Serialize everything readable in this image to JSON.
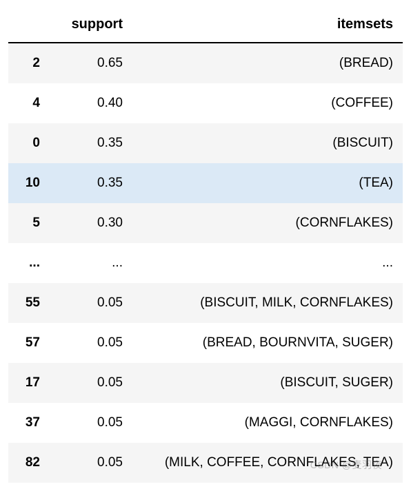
{
  "table": {
    "columns": {
      "index": "",
      "support": "support",
      "itemsets": "itemsets"
    },
    "rows": [
      {
        "index": "2",
        "support": "0.65",
        "itemsets": "(BREAD)",
        "style": "odd"
      },
      {
        "index": "4",
        "support": "0.40",
        "itemsets": "(COFFEE)",
        "style": "even"
      },
      {
        "index": "0",
        "support": "0.35",
        "itemsets": "(BISCUIT)",
        "style": "odd"
      },
      {
        "index": "10",
        "support": "0.35",
        "itemsets": "(TEA)",
        "style": "highlight"
      },
      {
        "index": "5",
        "support": "0.30",
        "itemsets": "(CORNFLAKES)",
        "style": "odd"
      },
      {
        "index": "...",
        "support": "...",
        "itemsets": "...",
        "style": "ellipsis"
      },
      {
        "index": "55",
        "support": "0.05",
        "itemsets": "(BISCUIT, MILK, CORNFLAKES)",
        "style": "odd"
      },
      {
        "index": "57",
        "support": "0.05",
        "itemsets": "(BREAD, BOURNVITA, SUGER)",
        "style": "even"
      },
      {
        "index": "17",
        "support": "0.05",
        "itemsets": "(BISCUIT, SUGER)",
        "style": "odd"
      },
      {
        "index": "37",
        "support": "0.05",
        "itemsets": "(MAGGI, CORNFLAKES)",
        "style": "even"
      },
      {
        "index": "82",
        "support": "0.05",
        "itemsets": "(MILK, COFFEE, CORNFLAKES, TEA)",
        "style": "odd"
      }
    ],
    "header_fontsize": 20,
    "cell_fontsize": 19,
    "colors": {
      "row_odd": "#f5f5f5",
      "row_even": "#ffffff",
      "row_highlight": "#dbe9f6",
      "border": "#000000",
      "text": "#000000"
    }
  },
  "watermark": "CSDN @麦羽夜"
}
